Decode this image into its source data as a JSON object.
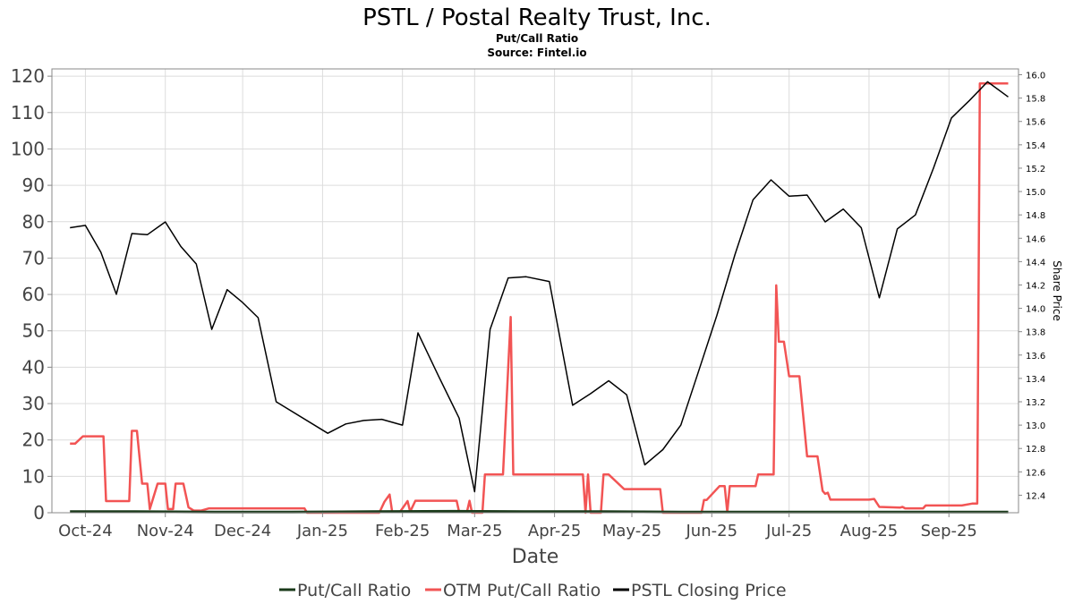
{
  "header": {
    "title": "PSTL / Postal Realty Trust, Inc.",
    "subtitle": "Put/Call Ratio",
    "source": "Source: Fintel.io"
  },
  "chart_data": {
    "type": "line",
    "xlabel": "Date",
    "ylabel": "",
    "y2label": "Share Price",
    "ylim": [
      0,
      122
    ],
    "y2lim": [
      12.25,
      16.05
    ],
    "yticks": [
      0,
      10,
      20,
      30,
      40,
      50,
      60,
      70,
      80,
      90,
      100,
      110,
      120
    ],
    "y2ticks": [
      "12.4",
      "12.6",
      "12.8",
      "13.0",
      "13.2",
      "13.4",
      "13.6",
      "13.8",
      "14.0",
      "14.2",
      "14.4",
      "14.6",
      "14.8",
      "15.0",
      "15.2",
      "15.4",
      "15.6",
      "15.8",
      "16.0"
    ],
    "xlim": [
      "2024-09-18",
      "2025-09-28"
    ],
    "xticks": [
      {
        "label": "Oct-24",
        "date": "2024-10-01"
      },
      {
        "label": "Nov-24",
        "date": "2024-11-01"
      },
      {
        "label": "Dec-24",
        "date": "2024-12-01"
      },
      {
        "label": "Jan-25",
        "date": "2025-01-01"
      },
      {
        "label": "Feb-25",
        "date": "2025-02-01"
      },
      {
        "label": "Mar-25",
        "date": "2025-03-01"
      },
      {
        "label": "Apr-25",
        "date": "2025-04-01"
      },
      {
        "label": "May-25",
        "date": "2025-05-01"
      },
      {
        "label": "Jun-25",
        "date": "2025-06-01"
      },
      {
        "label": "Jul-25",
        "date": "2025-07-01"
      },
      {
        "label": "Aug-25",
        "date": "2025-08-01"
      },
      {
        "label": "Sep-25",
        "date": "2025-09-01"
      }
    ],
    "grid": true,
    "legend": "bottom",
    "series": [
      {
        "name": "Put/Call Ratio",
        "axis": "left",
        "color": "#1a3a1a",
        "points": [
          [
            "2024-09-25",
            0.3
          ],
          [
            "2024-10-20",
            0.3
          ],
          [
            "2024-11-20",
            0.2
          ],
          [
            "2024-12-20",
            0.2
          ],
          [
            "2025-01-20",
            0.3
          ],
          [
            "2025-02-20",
            0.4
          ],
          [
            "2025-03-20",
            0.3
          ],
          [
            "2025-04-20",
            0.3
          ],
          [
            "2025-05-20",
            0.2
          ],
          [
            "2025-06-20",
            0.2
          ],
          [
            "2025-07-20",
            0.2
          ],
          [
            "2025-08-20",
            0.2
          ],
          [
            "2025-09-24",
            0.2
          ]
        ]
      },
      {
        "name": "OTM Put/Call Ratio",
        "axis": "left",
        "color": "#f25454",
        "points": [
          [
            "2024-09-25",
            19
          ],
          [
            "2024-09-27",
            19
          ],
          [
            "2024-09-30",
            21
          ],
          [
            "2024-10-08",
            21
          ],
          [
            "2024-10-09",
            3.2
          ],
          [
            "2024-10-18",
            3.2
          ],
          [
            "2024-10-19",
            22.5
          ],
          [
            "2024-10-21",
            22.5
          ],
          [
            "2024-10-23",
            8
          ],
          [
            "2024-10-25",
            8
          ],
          [
            "2024-10-26",
            1
          ],
          [
            "2024-10-29",
            8
          ],
          [
            "2024-11-01",
            8
          ],
          [
            "2024-11-02",
            1
          ],
          [
            "2024-11-04",
            1
          ],
          [
            "2024-11-05",
            8
          ],
          [
            "2024-11-08",
            8
          ],
          [
            "2024-11-10",
            1.5
          ],
          [
            "2024-11-12",
            0.6
          ],
          [
            "2024-11-15",
            0.6
          ],
          [
            "2024-11-18",
            1.2
          ],
          [
            "2024-12-25",
            1.2
          ],
          [
            "2024-12-26",
            0
          ],
          [
            "2025-01-23",
            0
          ],
          [
            "2025-01-25",
            3
          ],
          [
            "2025-01-27",
            5
          ],
          [
            "2025-01-28",
            0.2
          ],
          [
            "2025-01-31",
            0.2
          ],
          [
            "2025-02-03",
            3.2
          ],
          [
            "2025-02-04",
            0.3
          ],
          [
            "2025-02-06",
            3.3
          ],
          [
            "2025-02-22",
            3.3
          ],
          [
            "2025-02-23",
            0.2
          ],
          [
            "2025-02-26",
            0.2
          ],
          [
            "2025-02-27",
            3.3
          ],
          [
            "2025-02-28",
            0
          ],
          [
            "2025-03-04",
            0
          ],
          [
            "2025-03-05",
            10.5
          ],
          [
            "2025-03-12",
            10.5
          ],
          [
            "2025-03-15",
            53.8
          ],
          [
            "2025-03-16",
            10.5
          ],
          [
            "2025-04-12",
            10.5
          ],
          [
            "2025-04-13",
            0
          ],
          [
            "2025-04-14",
            10.5
          ],
          [
            "2025-04-15",
            0
          ],
          [
            "2025-04-19",
            0
          ],
          [
            "2025-04-20",
            10.5
          ],
          [
            "2025-04-22",
            10.5
          ],
          [
            "2025-04-28",
            6.5
          ],
          [
            "2025-05-12",
            6.5
          ],
          [
            "2025-05-13",
            0
          ],
          [
            "2025-05-28",
            0
          ],
          [
            "2025-05-29",
            3.5
          ],
          [
            "2025-05-30",
            3.5
          ],
          [
            "2025-06-04",
            7.3
          ],
          [
            "2025-06-06",
            7.3
          ],
          [
            "2025-06-07",
            0.2
          ],
          [
            "2025-06-08",
            7.3
          ],
          [
            "2025-06-18",
            7.3
          ],
          [
            "2025-06-19",
            10.5
          ],
          [
            "2025-06-25",
            10.5
          ],
          [
            "2025-06-26",
            62.5
          ],
          [
            "2025-06-27",
            47
          ],
          [
            "2025-06-29",
            47
          ],
          [
            "2025-07-01",
            37.5
          ],
          [
            "2025-07-05",
            37.5
          ],
          [
            "2025-07-08",
            15.5
          ],
          [
            "2025-07-12",
            15.5
          ],
          [
            "2025-07-14",
            6
          ],
          [
            "2025-07-15",
            5.2
          ],
          [
            "2025-07-16",
            5.5
          ],
          [
            "2025-07-17",
            3.6
          ],
          [
            "2025-08-01",
            3.6
          ],
          [
            "2025-08-03",
            3.8
          ],
          [
            "2025-08-05",
            1.6
          ],
          [
            "2025-08-13",
            1.4
          ],
          [
            "2025-08-14",
            1.6
          ],
          [
            "2025-08-15",
            1.2
          ],
          [
            "2025-08-22",
            1.2
          ],
          [
            "2025-08-23",
            2.0
          ],
          [
            "2025-09-06",
            2.0
          ],
          [
            "2025-09-10",
            2.5
          ],
          [
            "2025-09-12",
            2.5
          ],
          [
            "2025-09-13",
            118
          ],
          [
            "2025-09-20",
            118
          ],
          [
            "2025-09-24",
            118
          ]
        ]
      },
      {
        "name": "PSTL Closing Price",
        "axis": "right",
        "color": "#000000",
        "points": [
          [
            "2024-09-25",
            14.69
          ],
          [
            "2024-10-01",
            14.71
          ],
          [
            "2024-10-07",
            14.48
          ],
          [
            "2024-10-13",
            14.12
          ],
          [
            "2024-10-19",
            14.64
          ],
          [
            "2024-10-25",
            14.63
          ],
          [
            "2024-11-01",
            14.74
          ],
          [
            "2024-11-07",
            14.53
          ],
          [
            "2024-11-13",
            14.38
          ],
          [
            "2024-11-19",
            13.82
          ],
          [
            "2024-11-25",
            14.16
          ],
          [
            "2024-12-01",
            14.05
          ],
          [
            "2024-12-07",
            13.92
          ],
          [
            "2024-12-14",
            13.2
          ],
          [
            "2025-01-03",
            12.93
          ],
          [
            "2025-01-10",
            13.01
          ],
          [
            "2025-01-17",
            13.04
          ],
          [
            "2025-01-24",
            13.05
          ],
          [
            "2025-02-01",
            13.0
          ],
          [
            "2025-02-07",
            13.79
          ],
          [
            "2025-02-15",
            13.42
          ],
          [
            "2025-02-23",
            13.06
          ],
          [
            "2025-03-01",
            12.43
          ],
          [
            "2025-03-07",
            13.82
          ],
          [
            "2025-03-14",
            14.26
          ],
          [
            "2025-03-21",
            14.27
          ],
          [
            "2025-03-30",
            14.23
          ],
          [
            "2025-04-08",
            13.17
          ],
          [
            "2025-04-15",
            13.27
          ],
          [
            "2025-04-22",
            13.38
          ],
          [
            "2025-04-29",
            13.26
          ],
          [
            "2025-05-06",
            12.66
          ],
          [
            "2025-05-13",
            12.79
          ],
          [
            "2025-05-20",
            13.0
          ],
          [
            "2025-05-27",
            13.47
          ],
          [
            "2025-06-03",
            13.94
          ],
          [
            "2025-06-10",
            14.46
          ],
          [
            "2025-06-17",
            14.93
          ],
          [
            "2025-06-24",
            15.1
          ],
          [
            "2025-07-01",
            14.96
          ],
          [
            "2025-07-08",
            14.97
          ],
          [
            "2025-07-15",
            14.74
          ],
          [
            "2025-07-22",
            14.85
          ],
          [
            "2025-07-29",
            14.69
          ],
          [
            "2025-08-05",
            14.09
          ],
          [
            "2025-08-12",
            14.68
          ],
          [
            "2025-08-19",
            14.8
          ],
          [
            "2025-08-26",
            15.2
          ],
          [
            "2025-09-02",
            15.63
          ],
          [
            "2025-09-09",
            15.78
          ],
          [
            "2025-09-16",
            15.94
          ],
          [
            "2025-09-24",
            15.81
          ]
        ]
      }
    ]
  }
}
